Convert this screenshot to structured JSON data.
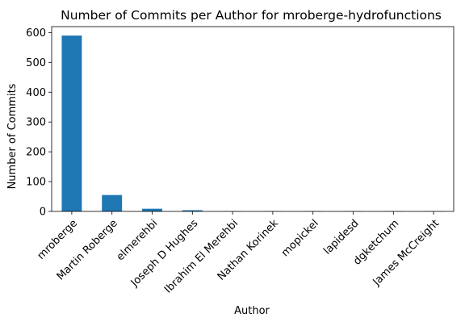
{
  "chart_data": {
    "type": "bar",
    "title": "Number of Commits per Author for mroberge-hydrofunctions",
    "xlabel": "Author",
    "ylabel": "Number of Commits",
    "categories": [
      "mroberge",
      "Martin Roberge",
      "elmerehbi",
      "Joseph D Hughes",
      "Ibrahim El Merehbi",
      "Nathan Korinek",
      "mopickel",
      "lapidesd",
      "dgketchum",
      "James McCreight"
    ],
    "values": [
      590,
      55,
      9,
      4,
      1,
      1,
      1,
      1,
      1,
      1
    ],
    "yticks": [
      0,
      100,
      200,
      300,
      400,
      500,
      600
    ],
    "ylim": [
      0,
      620
    ],
    "grid": false,
    "legend": "none",
    "bar_color": "#1f77b4"
  }
}
